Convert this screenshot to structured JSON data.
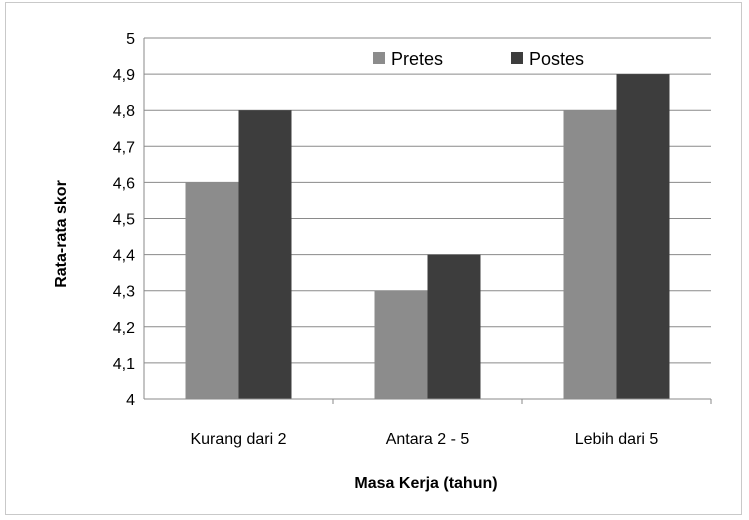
{
  "chart_data": {
    "type": "bar",
    "categories": [
      "Kurang dari 2",
      "Antara 2 - 5",
      "Lebih dari 5"
    ],
    "series": [
      {
        "name": "Pretes",
        "values": [
          4.6,
          4.3,
          4.8
        ],
        "color": "#8c8c8c"
      },
      {
        "name": "Postes",
        "values": [
          4.8,
          4.4,
          4.9
        ],
        "color": "#3d3d3d"
      }
    ],
    "title": "",
    "xlabel": "Masa Kerja (tahun)",
    "ylabel": "Rata-rata skor",
    "ylim": [
      4,
      5
    ],
    "y_ticks": [
      "4",
      "4,1",
      "4,2",
      "4,3",
      "4,4",
      "4,5",
      "4,6",
      "4,7",
      "4,8",
      "4,9",
      "5"
    ],
    "grid": true,
    "legend_position": "top-right"
  }
}
